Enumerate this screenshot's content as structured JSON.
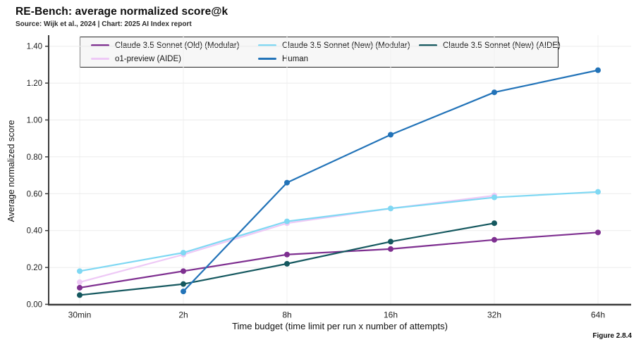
{
  "header": {
    "title": "RE-Bench: average normalized score@k",
    "subtitle": "Source: Wijk et al., 2024 | Chart: 2025 AI Index report"
  },
  "footer": {
    "figure_label": "Figure 2.8.4"
  },
  "chart_data": {
    "type": "line",
    "title": "RE-Bench: average normalized score@k",
    "xlabel": "Time budget (time limit per run x number of attempts)",
    "ylabel": "Average normalized score",
    "categories": [
      "30min",
      "2h",
      "8h",
      "16h",
      "32h",
      "64h"
    ],
    "ylim": [
      0.0,
      1.4
    ],
    "ytick_step": 0.2,
    "ytick_labels": [
      "0.00",
      "0.20",
      "0.40",
      "0.60",
      "0.80",
      "1.00",
      "1.20",
      "1.40"
    ],
    "grid": true,
    "legend_position": "top",
    "marker": "circle",
    "series": [
      {
        "name": "Claude 3.5 Sonnet (Old) (Modular)",
        "color": "#7e2f90",
        "values": [
          0.09,
          0.18,
          0.27,
          0.3,
          0.35,
          0.39
        ]
      },
      {
        "name": "Claude 3.5 Sonnet (New) (Modular)",
        "color": "#7fd8f3",
        "values": [
          0.18,
          0.28,
          0.45,
          0.52,
          0.58,
          0.61
        ]
      },
      {
        "name": "Claude 3.5 Sonnet (New) (AIDE)",
        "color": "#15585f",
        "values": [
          0.05,
          0.11,
          0.22,
          0.34,
          0.44,
          null
        ]
      },
      {
        "name": "o1-preview (AIDE)",
        "color": "#eec9f6",
        "values": [
          0.12,
          0.27,
          0.44,
          0.52,
          0.59,
          null
        ]
      },
      {
        "name": "Human",
        "color": "#2273b8",
        "values": [
          null,
          0.07,
          0.66,
          0.92,
          1.15,
          1.27
        ]
      }
    ]
  }
}
